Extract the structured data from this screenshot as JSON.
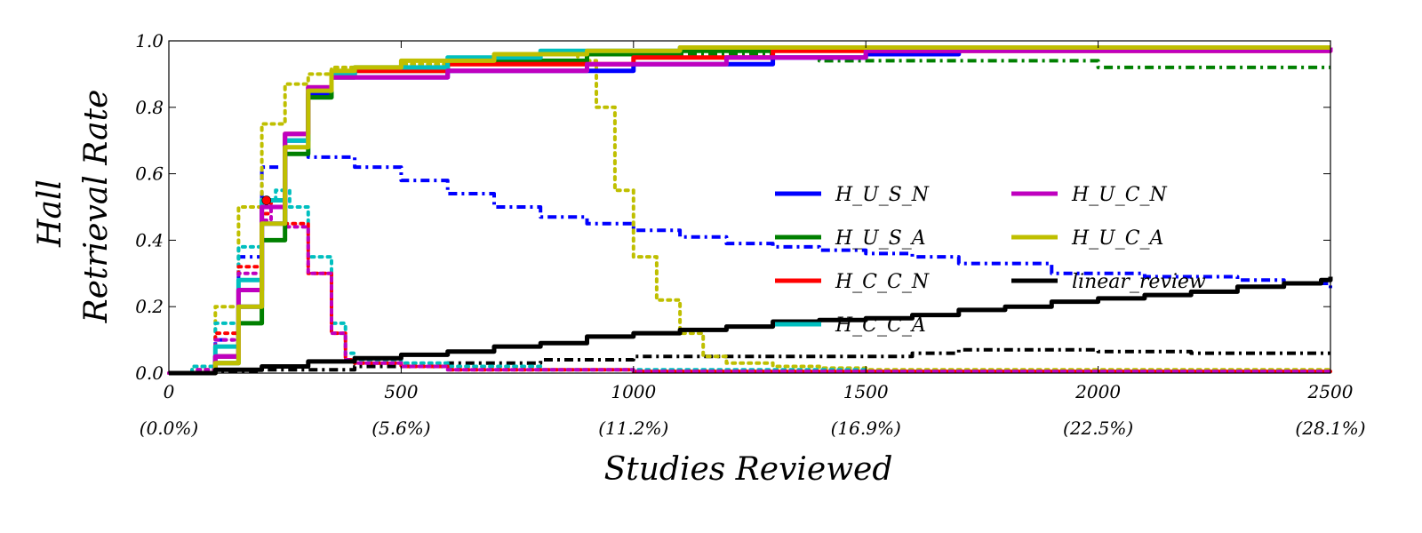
{
  "chart_data": {
    "type": "line",
    "title": "",
    "xlabel": "Studies Reviewed",
    "ylabel": [
      "Hall",
      "Retrieval Rate"
    ],
    "xlim": [
      0,
      2500
    ],
    "ylim": [
      0,
      1.0
    ],
    "grid": false,
    "legend_position": "center-right",
    "xticks": [
      {
        "value": 0,
        "label": "0",
        "sublabel": "(0.0%)"
      },
      {
        "value": 500,
        "label": "500",
        "sublabel": "(5.6%)"
      },
      {
        "value": 1000,
        "label": "1000",
        "sublabel": "(11.2%)"
      },
      {
        "value": 1500,
        "label": "1500",
        "sublabel": "(16.9%)"
      },
      {
        "value": 2000,
        "label": "2000",
        "sublabel": "(22.5%)"
      },
      {
        "value": 2500,
        "label": "2500",
        "sublabel": "(28.1%)"
      }
    ],
    "yticks": [
      {
        "value": 0.0,
        "label": "0.0"
      },
      {
        "value": 0.2,
        "label": "0.2"
      },
      {
        "value": 0.4,
        "label": "0.4"
      },
      {
        "value": 0.6,
        "label": "0.6"
      },
      {
        "value": 0.8,
        "label": "0.8"
      },
      {
        "value": 1.0,
        "label": "1.0"
      }
    ],
    "series": [
      {
        "name": "H_U_S_N",
        "color": "#0000ff",
        "style": "solid",
        "x": [
          0,
          80,
          100,
          150,
          200,
          250,
          300,
          350,
          400,
          600,
          1000,
          1300,
          1500,
          1700,
          2500
        ],
        "y": [
          0,
          0,
          0.05,
          0.2,
          0.45,
          0.7,
          0.84,
          0.89,
          0.89,
          0.91,
          0.93,
          0.95,
          0.96,
          0.98,
          0.98
        ]
      },
      {
        "name": "H_U_S_A",
        "color": "#008000",
        "style": "solid",
        "x": [
          0,
          80,
          100,
          150,
          200,
          250,
          300,
          350,
          400,
          600,
          900,
          1100,
          1300,
          2500
        ],
        "y": [
          0,
          0,
          0.03,
          0.15,
          0.4,
          0.66,
          0.83,
          0.89,
          0.91,
          0.94,
          0.96,
          0.97,
          0.98,
          0.98
        ]
      },
      {
        "name": "H_C_C_N",
        "color": "#ff0000",
        "style": "solid",
        "x": [
          0,
          80,
          100,
          150,
          200,
          250,
          300,
          350,
          400,
          600,
          1000,
          1300,
          2500
        ],
        "y": [
          0,
          0,
          0.05,
          0.25,
          0.5,
          0.72,
          0.86,
          0.9,
          0.91,
          0.93,
          0.95,
          0.97,
          0.98
        ]
      },
      {
        "name": "H_C_C_A",
        "color": "#00bfbf",
        "style": "solid",
        "x": [
          0,
          80,
          100,
          150,
          200,
          250,
          300,
          350,
          400,
          600,
          800,
          1100,
          1300,
          2500
        ],
        "y": [
          0,
          0,
          0.08,
          0.28,
          0.52,
          0.7,
          0.85,
          0.9,
          0.92,
          0.95,
          0.97,
          0.98,
          0.98,
          0.98
        ]
      },
      {
        "name": "H_U_C_N",
        "color": "#bf00bf",
        "style": "solid",
        "x": [
          0,
          80,
          100,
          150,
          200,
          250,
          300,
          350,
          400,
          600,
          900,
          1200,
          1500,
          2500
        ],
        "y": [
          0,
          0,
          0.05,
          0.25,
          0.5,
          0.72,
          0.86,
          0.89,
          0.89,
          0.91,
          0.93,
          0.95,
          0.97,
          0.98
        ]
      },
      {
        "name": "H_U_C_A",
        "color": "#bfbf00",
        "style": "solid",
        "x": [
          0,
          80,
          100,
          150,
          200,
          250,
          300,
          350,
          400,
          500,
          700,
          900,
          1100,
          1500,
          2500
        ],
        "y": [
          0,
          0,
          0.03,
          0.2,
          0.45,
          0.68,
          0.85,
          0.91,
          0.92,
          0.94,
          0.96,
          0.97,
          0.98,
          0.98,
          0.98
        ]
      },
      {
        "name": "linear_review",
        "color": "#000000",
        "style": "solid",
        "x": [
          0,
          50,
          100,
          200,
          300,
          400,
          500,
          600,
          700,
          800,
          900,
          1000,
          1100,
          1200,
          1300,
          1400,
          1500,
          1600,
          1700,
          1800,
          1900,
          2000,
          2100,
          2200,
          2300,
          2400,
          2480,
          2500
        ],
        "y": [
          0,
          0,
          0.01,
          0.02,
          0.035,
          0.045,
          0.055,
          0.065,
          0.08,
          0.09,
          0.11,
          0.12,
          0.13,
          0.14,
          0.155,
          0.16,
          0.165,
          0.175,
          0.19,
          0.2,
          0.215,
          0.225,
          0.235,
          0.245,
          0.26,
          0.27,
          0.28,
          0.29
        ]
      },
      {
        "name": "",
        "color": "#0000ff",
        "style": "dashdot",
        "x": [
          0,
          60,
          100,
          150,
          200,
          250,
          300,
          400,
          500,
          600,
          700,
          800,
          900,
          1000,
          1100,
          1200,
          1300,
          1400,
          1500,
          1600,
          1700,
          1800,
          1900,
          2000,
          2100,
          2200,
          2300,
          2400,
          2500
        ],
        "y": [
          0,
          0,
          0.1,
          0.35,
          0.62,
          0.68,
          0.65,
          0.62,
          0.58,
          0.54,
          0.5,
          0.47,
          0.45,
          0.43,
          0.41,
          0.39,
          0.38,
          0.37,
          0.36,
          0.35,
          0.33,
          0.33,
          0.3,
          0.3,
          0.29,
          0.29,
          0.28,
          0.27,
          0.25
        ]
      },
      {
        "name": "",
        "color": "#008000",
        "style": "dashdot",
        "x": [
          0,
          80,
          100,
          150,
          200,
          250,
          300,
          350,
          400,
          600,
          900,
          1100,
          1300,
          1400,
          1700,
          2000,
          2200,
          2500
        ],
        "y": [
          0,
          0,
          0.03,
          0.15,
          0.4,
          0.66,
          0.83,
          0.89,
          0.91,
          0.94,
          0.96,
          0.96,
          0.95,
          0.94,
          0.94,
          0.92,
          0.92,
          0.92
        ]
      },
      {
        "name": "",
        "color": "#000000",
        "style": "dashdot",
        "x": [
          0,
          100,
          200,
          400,
          600,
          800,
          1000,
          1200,
          1400,
          1600,
          1700,
          1800,
          2000,
          2200,
          2400,
          2500
        ],
        "y": [
          0,
          0.005,
          0.01,
          0.02,
          0.03,
          0.04,
          0.05,
          0.05,
          0.05,
          0.06,
          0.07,
          0.07,
          0.065,
          0.06,
          0.06,
          0.06
        ]
      },
      {
        "name": "",
        "color": "#bfbf00",
        "style": "dotted",
        "x": [
          0,
          50,
          100,
          150,
          200,
          250,
          300,
          350,
          400,
          500,
          600,
          700,
          800,
          880,
          920,
          960,
          1000,
          1050,
          1100,
          1150,
          1200,
          1300,
          1400,
          1500,
          2500
        ],
        "y": [
          0,
          0.02,
          0.2,
          0.5,
          0.75,
          0.87,
          0.9,
          0.92,
          0.92,
          0.93,
          0.94,
          0.95,
          0.96,
          0.94,
          0.8,
          0.55,
          0.35,
          0.22,
          0.12,
          0.05,
          0.03,
          0.02,
          0.015,
          0.01,
          0.01
        ]
      },
      {
        "name": "",
        "color": "#00bfbf",
        "style": "dotted",
        "x": [
          0,
          50,
          100,
          150,
          200,
          230,
          260,
          300,
          350,
          380,
          400,
          500,
          600,
          800,
          1000,
          1500,
          2500
        ],
        "y": [
          0,
          0.02,
          0.15,
          0.38,
          0.52,
          0.55,
          0.5,
          0.35,
          0.15,
          0.06,
          0.04,
          0.03,
          0.02,
          0.01,
          0.01,
          0.005,
          0.005
        ]
      },
      {
        "name": "",
        "color": "#ff0000",
        "style": "dotted",
        "x": [
          0,
          60,
          100,
          150,
          200,
          220,
          250,
          300,
          350,
          380,
          400,
          500,
          600,
          800,
          1000,
          1500,
          2500
        ],
        "y": [
          0,
          0.01,
          0.12,
          0.32,
          0.48,
          0.52,
          0.45,
          0.3,
          0.12,
          0.04,
          0.03,
          0.02,
          0.01,
          0.01,
          0.005,
          0.005,
          0.005
        ]
      },
      {
        "name": "",
        "color": "#bf00bf",
        "style": "dotted",
        "x": [
          0,
          60,
          100,
          150,
          200,
          220,
          250,
          300,
          350,
          380,
          400,
          500,
          600,
          800,
          1000,
          1500,
          2500
        ],
        "y": [
          0,
          0.01,
          0.1,
          0.3,
          0.46,
          0.5,
          0.44,
          0.3,
          0.12,
          0.04,
          0.03,
          0.02,
          0.01,
          0.01,
          0.005,
          0.005,
          0.005
        ]
      }
    ],
    "markers": [
      {
        "x": 210,
        "y": 0.52,
        "color": "#ff0000"
      }
    ],
    "legend": [
      {
        "label": "H_U_S_N",
        "color": "#0000ff"
      },
      {
        "label": "H_U_S_A",
        "color": "#008000"
      },
      {
        "label": "H_C_C_N",
        "color": "#ff0000"
      },
      {
        "label": "H_C_C_A",
        "color": "#00bfbf"
      },
      {
        "label": "H_U_C_N",
        "color": "#bf00bf"
      },
      {
        "label": "H_U_C_A",
        "color": "#bfbf00"
      },
      {
        "label": "linear_review",
        "color": "#000000"
      }
    ]
  }
}
